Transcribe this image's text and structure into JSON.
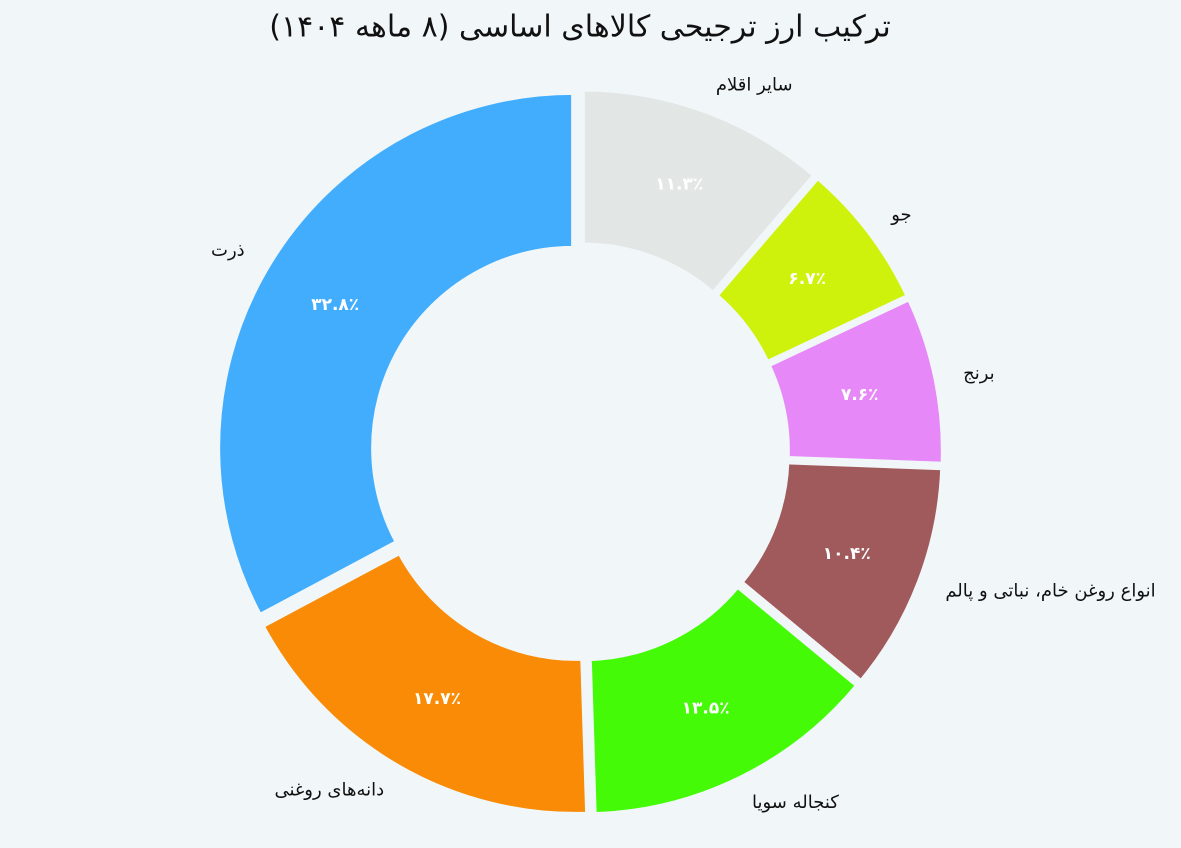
{
  "chart_data": {
    "type": "donut",
    "title": "ترکیب ارز ترجیحی کالاهای اساسی (۸ ماهه ۱۴۰۴)",
    "categories": [
      "ذرت",
      "دانه‌های روغنی",
      "کنجاله سویا",
      "انواع روغن خام، نباتی و پالم",
      "برنج",
      "جو",
      "سایر اقلام"
    ],
    "values": [
      32.8,
      17.7,
      13.5,
      10.4,
      7.6,
      6.7,
      11.3
    ],
    "value_labels": [
      "۳۲.۸٪",
      "۱۷.۷٪",
      "۱۳.۵٪",
      "۱۰.۴٪",
      "۷.۶٪",
      "۶.۷٪",
      "۱۱.۳٪"
    ],
    "colors": [
      "#42adfc",
      "#f98b06",
      "#44fa07",
      "#a15a5c",
      "#e688f7",
      "#cef20c",
      "#e2e7e5"
    ]
  }
}
